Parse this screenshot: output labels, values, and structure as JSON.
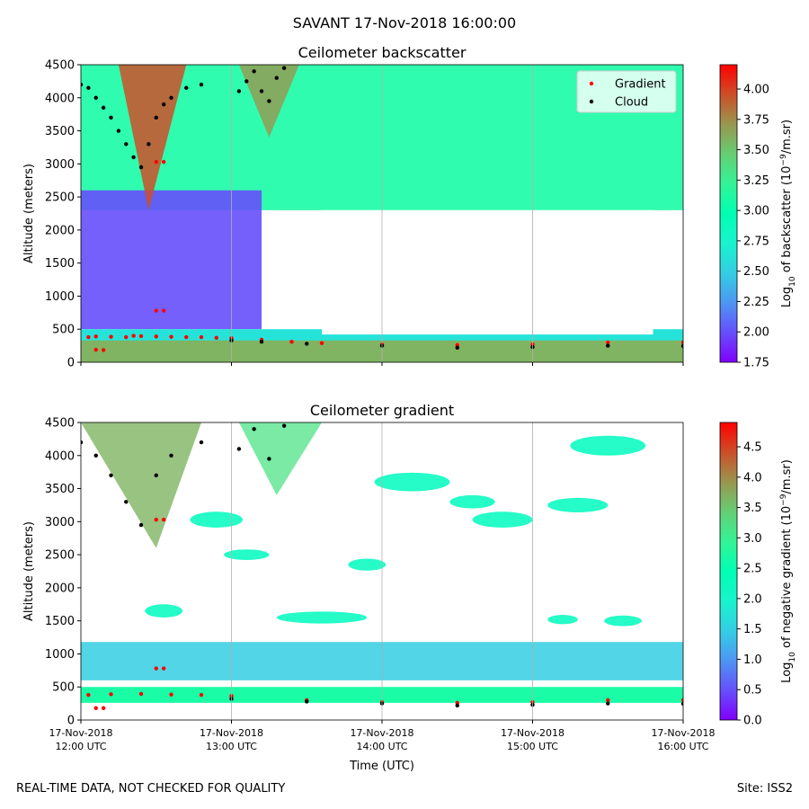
{
  "figure": {
    "suptitle": "SAVANT 17-Nov-2018 16:00:00",
    "footer_left": "REAL-TIME DATA, NOT CHECKED FOR QUALITY",
    "footer_right": "Site: ISS2"
  },
  "chart_data": [
    {
      "type": "heatmap",
      "title": "Ceilometer backscatter",
      "ylabel": "Altitude (meters)",
      "xlabel": "",
      "xlim": [
        0,
        4
      ],
      "ylim": [
        0,
        4500
      ],
      "y_ticks": [
        0,
        500,
        1000,
        1500,
        2000,
        2500,
        3000,
        3500,
        4000,
        4500
      ],
      "x_tick_labels_shown": false,
      "grid": "vertical gridlines at hourly ticks",
      "colorbar": {
        "label": "Log10 of backscatter (10^-9/m.sr)",
        "label_parts": [
          "Log",
          "10",
          " of backscatter (10",
          "−9",
          "/m.sr)"
        ],
        "range": [
          1.75,
          4.2
        ],
        "ticks": [
          1.75,
          2.0,
          2.25,
          2.5,
          2.75,
          3.0,
          3.25,
          3.5,
          3.75,
          4.0
        ],
        "tick_labels": [
          "1.75",
          "2.00",
          "2.25",
          "2.50",
          "2.75",
          "3.00",
          "3.25",
          "3.50",
          "3.75",
          "4.00"
        ],
        "colormap": "rainbow"
      },
      "legend": {
        "placement": "top-right",
        "entries": [
          {
            "name": "Gradient",
            "color": "#ff0000"
          },
          {
            "name": "Cloud",
            "color": "#000000"
          }
        ]
      },
      "series": [
        {
          "name": "Gradient",
          "color": "#ff0000",
          "points": [
            [
              0.05,
              380
            ],
            [
              0.1,
              390
            ],
            [
              0.2,
              385
            ],
            [
              0.3,
              380
            ],
            [
              0.35,
              400
            ],
            [
              0.4,
              395
            ],
            [
              0.5,
              390
            ],
            [
              0.6,
              385
            ],
            [
              0.7,
              380
            ],
            [
              0.8,
              380
            ],
            [
              0.9,
              370
            ],
            [
              1.0,
              365
            ],
            [
              1.2,
              340
            ],
            [
              1.4,
              310
            ],
            [
              1.6,
              290
            ],
            [
              2.0,
              270
            ],
            [
              2.5,
              260
            ],
            [
              3.0,
              270
            ],
            [
              3.5,
              300
            ],
            [
              4.0,
              300
            ],
            [
              0.5,
              780
            ],
            [
              0.55,
              780
            ],
            [
              0.5,
              3030
            ],
            [
              0.55,
              3030
            ],
            [
              0.1,
              190
            ],
            [
              0.15,
              185
            ]
          ]
        },
        {
          "name": "Cloud",
          "color": "#000000",
          "points": [
            [
              0.0,
              4200
            ],
            [
              0.05,
              4150
            ],
            [
              0.1,
              4000
            ],
            [
              0.15,
              3850
            ],
            [
              0.2,
              3700
            ],
            [
              0.25,
              3500
            ],
            [
              0.3,
              3300
            ],
            [
              0.35,
              3100
            ],
            [
              0.4,
              2950
            ],
            [
              0.45,
              3300
            ],
            [
              0.5,
              3700
            ],
            [
              0.55,
              3900
            ],
            [
              0.6,
              4000
            ],
            [
              0.7,
              4150
            ],
            [
              0.8,
              4200
            ],
            [
              1.05,
              4100
            ],
            [
              1.1,
              4250
            ],
            [
              1.15,
              4400
            ],
            [
              1.2,
              4100
            ],
            [
              1.25,
              3950
            ],
            [
              1.3,
              4300
            ],
            [
              1.35,
              4450
            ],
            [
              1.0,
              330
            ],
            [
              1.2,
              310
            ],
            [
              1.5,
              280
            ],
            [
              2.0,
              250
            ],
            [
              2.5,
              220
            ],
            [
              3.0,
              230
            ],
            [
              3.5,
              250
            ],
            [
              4.0,
              245
            ]
          ]
        }
      ]
    },
    {
      "type": "heatmap",
      "title": "Ceilometer gradient",
      "ylabel": "Altitude (meters)",
      "xlabel": "Time (UTC)",
      "xlim": [
        0,
        4
      ],
      "ylim": [
        0,
        4500
      ],
      "y_ticks": [
        0,
        500,
        1000,
        1500,
        2000,
        2500,
        3000,
        3500,
        4000,
        4500
      ],
      "x_ticks": [
        0,
        1,
        2,
        3,
        4
      ],
      "x_tick_labels": [
        [
          "17-Nov-2018",
          "12:00 UTC"
        ],
        [
          "17-Nov-2018",
          "13:00 UTC"
        ],
        [
          "17-Nov-2018",
          "14:00 UTC"
        ],
        [
          "17-Nov-2018",
          "15:00 UTC"
        ],
        [
          "17-Nov-2018",
          "16:00 UTC"
        ]
      ],
      "grid": "vertical gridlines at hourly ticks",
      "colorbar": {
        "label": "Log10 of negative gradient (10^-9/m.sr)",
        "label_parts": [
          "Log",
          "10",
          " of negative gradient (10",
          "−9",
          "/m.sr)"
        ],
        "range": [
          0.0,
          4.9
        ],
        "ticks": [
          0.0,
          0.5,
          1.0,
          1.5,
          2.0,
          2.5,
          3.0,
          3.5,
          4.0,
          4.5
        ],
        "tick_labels": [
          "0.0",
          "0.5",
          "1.0",
          "1.5",
          "2.0",
          "2.5",
          "3.0",
          "3.5",
          "4.0",
          "4.5"
        ],
        "colormap": "rainbow"
      },
      "series": [
        {
          "name": "Gradient",
          "color": "#ff0000",
          "points": [
            [
              0.05,
              380
            ],
            [
              0.2,
              390
            ],
            [
              0.4,
              395
            ],
            [
              0.6,
              385
            ],
            [
              0.8,
              380
            ],
            [
              1.0,
              365
            ],
            [
              1.5,
              300
            ],
            [
              2.0,
              270
            ],
            [
              2.5,
              260
            ],
            [
              3.0,
              270
            ],
            [
              3.5,
              300
            ],
            [
              4.0,
              300
            ],
            [
              0.5,
              780
            ],
            [
              0.55,
              780
            ],
            [
              0.5,
              3030
            ],
            [
              0.55,
              3030
            ],
            [
              0.1,
              180
            ],
            [
              0.15,
              180
            ]
          ]
        },
        {
          "name": "Cloud",
          "color": "#000000",
          "points": [
            [
              0.0,
              4200
            ],
            [
              0.1,
              4000
            ],
            [
              0.2,
              3700
            ],
            [
              0.3,
              3300
            ],
            [
              0.4,
              2950
            ],
            [
              0.5,
              3700
            ],
            [
              0.6,
              4000
            ],
            [
              0.8,
              4200
            ],
            [
              1.05,
              4100
            ],
            [
              1.15,
              4400
            ],
            [
              1.25,
              3950
            ],
            [
              1.35,
              4450
            ],
            [
              1.0,
              320
            ],
            [
              1.5,
              280
            ],
            [
              2.0,
              250
            ],
            [
              2.5,
              220
            ],
            [
              3.0,
              230
            ],
            [
              3.5,
              250
            ],
            [
              4.0,
              245
            ]
          ]
        }
      ]
    }
  ]
}
